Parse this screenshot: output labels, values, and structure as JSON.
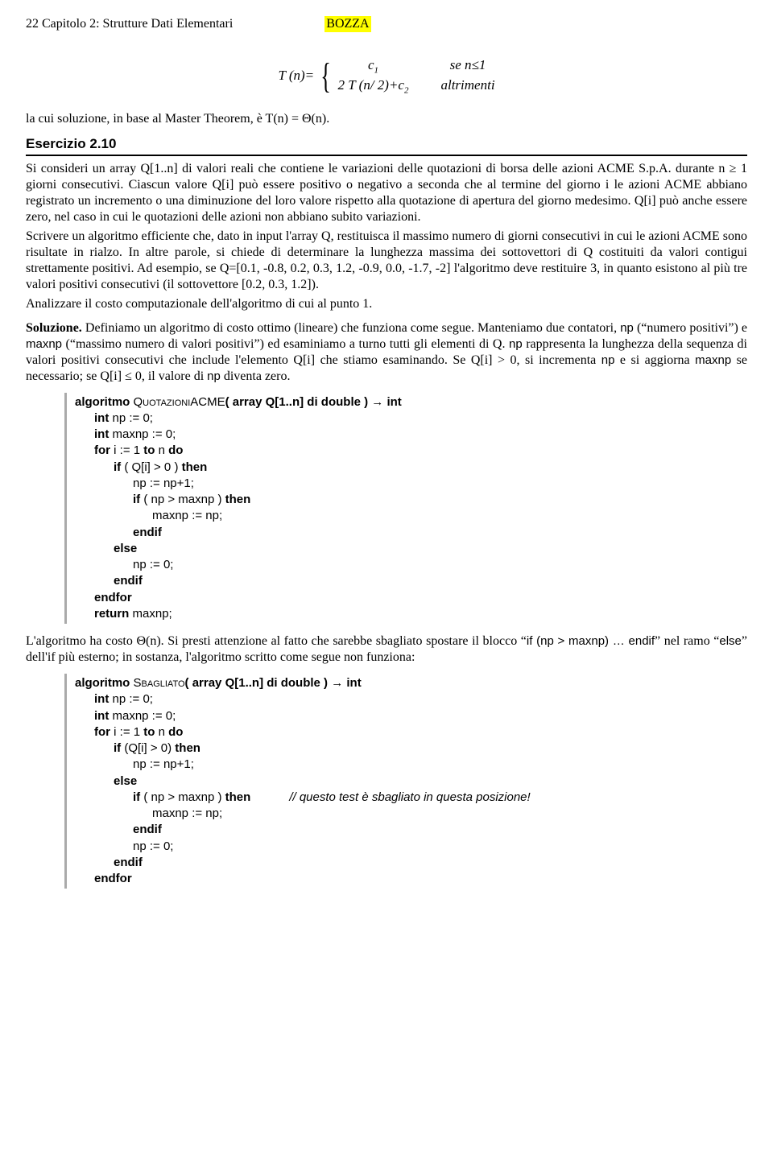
{
  "header": {
    "left": "22 Capitolo 2: Strutture Dati Elementari",
    "draft": "BOZZA"
  },
  "equation": {
    "lhs": "T (n)=",
    "row1_left": "c",
    "row1_sub": "1",
    "row1_right": "se  n≤1",
    "row2_left_a": "2 T (n/ 2)+c",
    "row2_sub": "2",
    "row2_right": "altrimenti"
  },
  "after_eq": "la cui soluzione, in base al Master Theorem, è T(n) = Θ(n).",
  "ex_title": "Esercizio 2.10",
  "para1": "Si consideri un array Q[1..n] di valori reali che contiene le variazioni delle quotazioni di borsa delle azioni ACME S.p.A. durante n ≥ 1 giorni consecutivi. Ciascun valore Q[i] può essere positivo o negativo a seconda che al termine del giorno i le azioni ACME abbiano registrato un incremento o una diminuzione del loro valore rispetto alla quotazione di apertura del giorno medesimo. Q[i] può anche essere zero, nel caso in cui le quotazioni delle azioni non abbiano subito variazioni.",
  "para2": "Scrivere un algoritmo efficiente che, dato in input l'array Q, restituisca il massimo numero di giorni consecutivi in cui le azioni ACME sono risultate in rialzo. In altre parole, si chiede di determinare la lunghezza massima dei sottovettori di Q costituiti da valori contigui strettamente positivi. Ad esempio, se Q=[0.1, -0.8, 0.2, 0.3, 1.2, -0.9, 0.0, -1.7, -2] l'algoritmo deve restituire 3, in quanto esistono al più tre valori positivi consecutivi (il sottovettore [0.2, 0.3, 1.2]).",
  "para3": "Analizzare il costo computazionale dell'algoritmo di cui al punto 1.",
  "sol_label": "Soluzione.",
  "sol_rest": " Definiamo un algoritmo di costo ottimo (lineare) che funziona come segue. Manteniamo due contatori, ",
  "sol_np": "np",
  "sol_mid1": " (“numero positivi”) e ",
  "sol_maxnp": "maxnp",
  "sol_mid2": " (“massimo numero di valori positivi”) ed esaminiamo a turno tutti gli elementi di Q. ",
  "sol_np2": "np",
  "sol_mid3": " rappresenta la lunghezza della sequenza di valori positivi consecutivi che include l'elemento Q[i] che stiamo esaminando. Se Q[i] > 0, si incrementa ",
  "sol_np3": "np",
  "sol_mid4": " e si aggiorna ",
  "sol_maxnp2": "maxnp",
  "sol_mid5": " se necessario; se Q[i] ≤ 0, il valore di ",
  "sol_np4": "np",
  "sol_mid6": " diventa zero.",
  "algo1": {
    "sig_pre": "algoritmo ",
    "sig_name": "QuotazioniACME",
    "sig_args": "( array Q[1..n] di double ) → int",
    "l1": "int np := 0;",
    "l2": "int maxnp := 0;",
    "l3a": "for",
    "l3b": " i := 1 ",
    "l3c": "to",
    "l3d": " n ",
    "l3e": "do",
    "l4a": "if",
    "l4b": " ( Q[i] > 0 ) ",
    "l4c": "then",
    "l5": "np := np+1;",
    "l6a": "if",
    "l6b": " ( np > maxnp ) ",
    "l6c": "then",
    "l7": "maxnp := np;",
    "l8": "endif",
    "l9": "else",
    "l10": "np := 0;",
    "l11": "endif",
    "l12": "endfor",
    "l13": "return maxnp;"
  },
  "after_algo1a": "L'algoritmo ha costo Θ(n). Si presti attenzione al fatto che sarebbe sbagliato spostare il blocco “",
  "after_algo1_code1": "if (np > maxnp) … endif",
  "after_algo1b": "” nel ramo “",
  "after_algo1_code2": "else",
  "after_algo1c": "” dell'if più esterno; in sostanza, l'algoritmo scritto come segue non funziona:",
  "algo2": {
    "sig_pre": "algoritmo ",
    "sig_name": "Sbagliato",
    "sig_args": "( array Q[1..n] di double ) → int",
    "l1": "int np := 0;",
    "l2": "int maxnp := 0;",
    "l3a": "for",
    "l3b": " i := 1 ",
    "l3c": "to",
    "l3d": " n ",
    "l3e": "do",
    "l4a": "if",
    "l4b": " (Q[i] > 0) ",
    "l4c": "then",
    "l5": "np := np+1;",
    "l6": "else",
    "l7a": "if",
    "l7b": " ( np > maxnp ) ",
    "l7c": "then",
    "comment": "// questo test è sbagliato in questa posizione!",
    "l8": "maxnp := np;",
    "l9": "endif",
    "l10": "np := 0;",
    "l11": "endif",
    "l12": "endfor"
  }
}
